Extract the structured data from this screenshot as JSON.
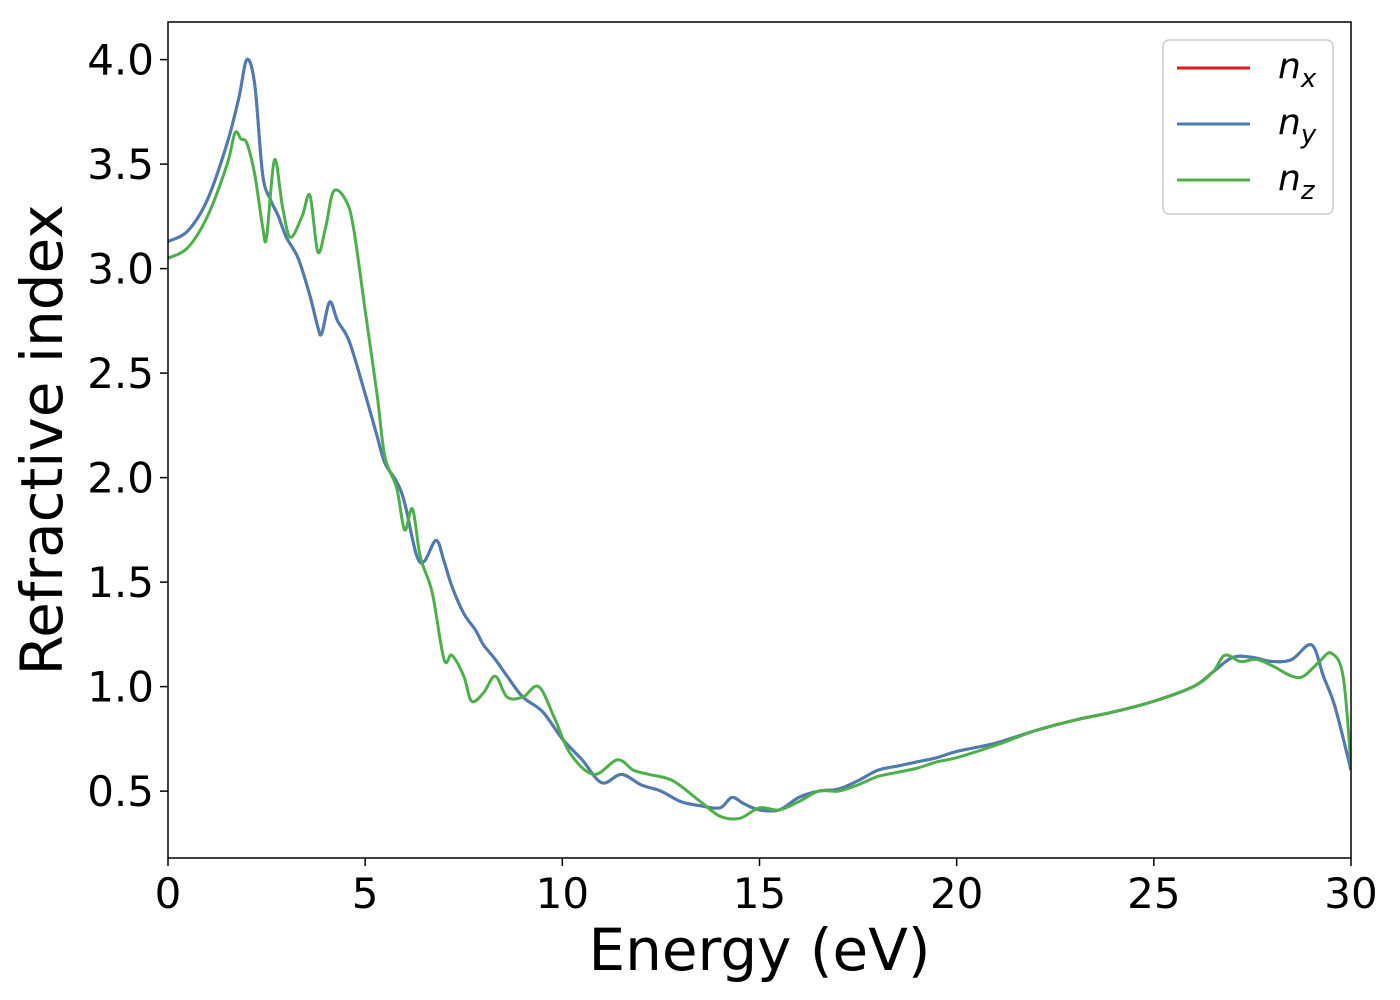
{
  "chart_data": {
    "type": "line",
    "xlabel": "Energy (eV)",
    "ylabel": "Refractive index",
    "xlim": [
      0,
      30
    ],
    "ylim": [
      0.18,
      4.18
    ],
    "xticks": [
      0,
      5,
      10,
      15,
      20,
      25,
      30
    ],
    "yticks": [
      0.5,
      1.0,
      1.5,
      2.0,
      2.5,
      3.0,
      3.5,
      4.0
    ],
    "xtick_labels": [
      "0",
      "5",
      "10",
      "15",
      "20",
      "25",
      "30"
    ],
    "ytick_labels": [
      "0.5",
      "1.0",
      "1.5",
      "2.0",
      "2.5",
      "3.0",
      "3.5",
      "4.0"
    ],
    "grid": false,
    "legend_position": "top-right",
    "series": [
      {
        "name": "n_x",
        "legend_base": "n",
        "legend_sub": "x",
        "color": "#e41a1c",
        "x": [
          0,
          0.5,
          1.0,
          1.5,
          1.8,
          2.0,
          2.2,
          2.4,
          2.6,
          2.8,
          3.0,
          3.3,
          3.6,
          3.8,
          3.9,
          4.1,
          4.3,
          4.6,
          5.0,
          5.3,
          5.5,
          5.8,
          6.0,
          6.3,
          6.5,
          6.8,
          7.0,
          7.2,
          7.5,
          7.8,
          8.0,
          8.3,
          8.6,
          9.0,
          9.5,
          10.0,
          10.5,
          11.0,
          11.5,
          12.0,
          12.5,
          13.0,
          13.5,
          14.0,
          14.3,
          14.6,
          15.0,
          15.5,
          16.0,
          16.5,
          17.0,
          17.5,
          18.0,
          18.5,
          19.0,
          19.5,
          20.0,
          21.0,
          22.0,
          23.0,
          24.0,
          25.0,
          26.0,
          26.5,
          27.0,
          27.5,
          28.0,
          28.5,
          29.0,
          29.3,
          29.6,
          30.0
        ],
        "y": [
          3.13,
          3.18,
          3.33,
          3.6,
          3.82,
          4.0,
          3.88,
          3.45,
          3.33,
          3.25,
          3.15,
          3.05,
          2.87,
          2.72,
          2.69,
          2.84,
          2.75,
          2.65,
          2.4,
          2.2,
          2.07,
          1.98,
          1.88,
          1.63,
          1.6,
          1.7,
          1.6,
          1.48,
          1.35,
          1.27,
          1.2,
          1.13,
          1.05,
          0.95,
          0.88,
          0.75,
          0.65,
          0.54,
          0.58,
          0.53,
          0.5,
          0.45,
          0.43,
          0.42,
          0.47,
          0.44,
          0.41,
          0.41,
          0.47,
          0.5,
          0.51,
          0.55,
          0.6,
          0.62,
          0.64,
          0.66,
          0.69,
          0.73,
          0.79,
          0.84,
          0.88,
          0.93,
          1.0,
          1.07,
          1.14,
          1.14,
          1.12,
          1.13,
          1.2,
          1.05,
          0.9,
          0.6
        ]
      },
      {
        "name": "n_y",
        "legend_base": "n",
        "legend_sub": "y",
        "color": "#4a7db3",
        "x": [
          0,
          0.5,
          1.0,
          1.5,
          1.8,
          2.0,
          2.2,
          2.4,
          2.6,
          2.8,
          3.0,
          3.3,
          3.6,
          3.8,
          3.9,
          4.1,
          4.3,
          4.6,
          5.0,
          5.3,
          5.5,
          5.8,
          6.0,
          6.3,
          6.5,
          6.8,
          7.0,
          7.2,
          7.5,
          7.8,
          8.0,
          8.3,
          8.6,
          9.0,
          9.5,
          10.0,
          10.5,
          11.0,
          11.5,
          12.0,
          12.5,
          13.0,
          13.5,
          14.0,
          14.3,
          14.6,
          15.0,
          15.5,
          16.0,
          16.5,
          17.0,
          17.5,
          18.0,
          18.5,
          19.0,
          19.5,
          20.0,
          21.0,
          22.0,
          23.0,
          24.0,
          25.0,
          26.0,
          26.5,
          27.0,
          27.5,
          28.0,
          28.5,
          29.0,
          29.3,
          29.6,
          30.0
        ],
        "y": [
          3.13,
          3.18,
          3.33,
          3.6,
          3.82,
          4.0,
          3.88,
          3.45,
          3.33,
          3.25,
          3.15,
          3.05,
          2.87,
          2.72,
          2.69,
          2.84,
          2.75,
          2.65,
          2.4,
          2.2,
          2.07,
          1.98,
          1.88,
          1.63,
          1.6,
          1.7,
          1.6,
          1.48,
          1.35,
          1.27,
          1.2,
          1.13,
          1.05,
          0.95,
          0.88,
          0.75,
          0.65,
          0.54,
          0.58,
          0.53,
          0.5,
          0.45,
          0.43,
          0.42,
          0.47,
          0.44,
          0.41,
          0.41,
          0.47,
          0.5,
          0.51,
          0.55,
          0.6,
          0.62,
          0.64,
          0.66,
          0.69,
          0.73,
          0.79,
          0.84,
          0.88,
          0.93,
          1.0,
          1.07,
          1.14,
          1.14,
          1.12,
          1.13,
          1.2,
          1.05,
          0.9,
          0.6
        ]
      },
      {
        "name": "n_z",
        "legend_base": "n",
        "legend_sub": "z",
        "color": "#4daf4a",
        "x": [
          0,
          0.5,
          1.0,
          1.5,
          1.7,
          1.85,
          2.0,
          2.2,
          2.4,
          2.5,
          2.7,
          2.9,
          3.1,
          3.4,
          3.6,
          3.8,
          4.0,
          4.2,
          4.5,
          4.7,
          5.0,
          5.3,
          5.5,
          5.8,
          6.0,
          6.2,
          6.4,
          6.7,
          7.0,
          7.2,
          7.5,
          7.7,
          8.0,
          8.3,
          8.6,
          9.0,
          9.4,
          9.8,
          10.2,
          10.8,
          11.4,
          11.8,
          12.2,
          12.8,
          13.5,
          14.0,
          14.5,
          15.0,
          15.5,
          16.0,
          16.5,
          17.0,
          17.5,
          18.0,
          18.5,
          19.0,
          19.5,
          20.0,
          21.0,
          22.0,
          23.0,
          24.0,
          25.0,
          26.0,
          26.5,
          26.8,
          27.2,
          27.6,
          28.0,
          28.5,
          28.8,
          29.2,
          29.5,
          29.8,
          30.0
        ],
        "y": [
          3.05,
          3.1,
          3.25,
          3.5,
          3.65,
          3.62,
          3.6,
          3.45,
          3.2,
          3.15,
          3.52,
          3.3,
          3.15,
          3.25,
          3.35,
          3.08,
          3.2,
          3.37,
          3.33,
          3.2,
          2.8,
          2.4,
          2.1,
          1.95,
          1.75,
          1.85,
          1.62,
          1.45,
          1.13,
          1.15,
          1.05,
          0.93,
          0.97,
          1.05,
          0.95,
          0.95,
          1.0,
          0.85,
          0.68,
          0.58,
          0.65,
          0.6,
          0.58,
          0.55,
          0.45,
          0.38,
          0.37,
          0.42,
          0.41,
          0.45,
          0.5,
          0.5,
          0.53,
          0.57,
          0.59,
          0.61,
          0.64,
          0.66,
          0.72,
          0.79,
          0.84,
          0.88,
          0.93,
          1.0,
          1.07,
          1.15,
          1.12,
          1.13,
          1.1,
          1.05,
          1.05,
          1.12,
          1.16,
          1.05,
          0.62
        ]
      }
    ]
  }
}
